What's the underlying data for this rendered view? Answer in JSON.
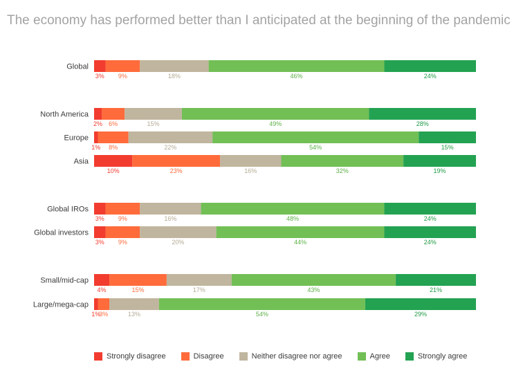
{
  "chart_data": {
    "type": "bar",
    "orientation": "horizontal",
    "stacked": true,
    "title": "The economy has performed better than I anticipated at the beginning of the pandemic",
    "categories": [
      "Global",
      "North America",
      "Europe",
      "Asia",
      "Global IROs",
      "Global investors",
      "Small/mid-cap",
      "Large/mega-cap"
    ],
    "groups": [
      [
        "Global"
      ],
      [
        "North America",
        "Europe",
        "Asia"
      ],
      [
        "Global IROs",
        "Global investors"
      ],
      [
        "Small/mid-cap",
        "Large/mega-cap"
      ]
    ],
    "value_suffix": "%",
    "xlim": [
      0,
      100
    ],
    "legend_position": "bottom",
    "series": [
      {
        "name": "Strongly disagree",
        "color": "#f23c2f",
        "label_color": "#f23c2f",
        "values": [
          3,
          2,
          1,
          10,
          3,
          3,
          4,
          1
        ]
      },
      {
        "name": "Disagree",
        "color": "#ff6b3b",
        "label_color": "#ff6b3b",
        "values": [
          9,
          6,
          8,
          23,
          9,
          9,
          15,
          3
        ]
      },
      {
        "name": "Neither disagree nor agree",
        "color": "#c0b59e",
        "label_color": "#b4aa93",
        "values": [
          18,
          15,
          22,
          16,
          16,
          20,
          17,
          13
        ]
      },
      {
        "name": "Agree",
        "color": "#72bf56",
        "label_color": "#5db046",
        "values": [
          46,
          49,
          54,
          32,
          48,
          44,
          43,
          54
        ]
      },
      {
        "name": "Strongly agree",
        "color": "#23a252",
        "label_color": "#1f9a45",
        "values": [
          24,
          28,
          15,
          19,
          24,
          24,
          21,
          29
        ]
      }
    ]
  }
}
